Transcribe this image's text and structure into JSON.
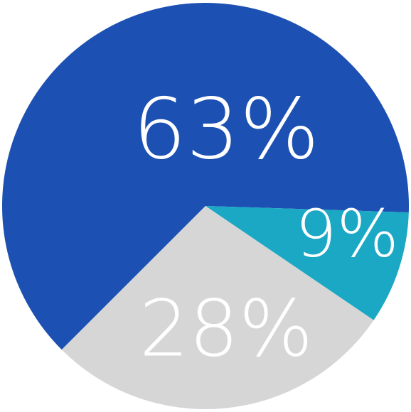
{
  "chart_data": {
    "type": "pie",
    "categories": [
      null,
      null,
      null
    ],
    "values": [
      63,
      9,
      28
    ],
    "value_labels": [
      "63%",
      "9%",
      "28%"
    ],
    "colors": [
      "#1d50b3",
      "#1aa8c4",
      "#d6d6d6"
    ]
  }
}
